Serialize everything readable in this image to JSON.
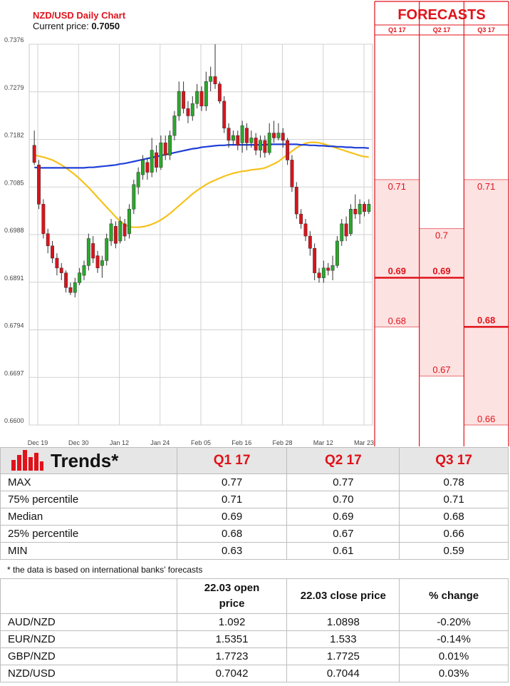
{
  "chart_data": {
    "type": "candlestick",
    "title": "NZD/USD Daily Chart",
    "current_price_label": "Current price:",
    "current_price": "0.7050",
    "y_ticks": [
      0.66,
      0.6697,
      0.6794,
      0.6891,
      0.6988,
      0.7085,
      0.7182,
      0.7279,
      0.7376
    ],
    "y_tick_labels": [
      "0.6600",
      "0.6697",
      "0.6794",
      "0.6891",
      "0.6988",
      "0.7085",
      "0.7182",
      "0.7279",
      "0.7376"
    ],
    "ylim": [
      0.66,
      0.7376
    ],
    "x_labels": [
      "Dec 19",
      "Dec 30",
      "Jan 12",
      "Jan 24",
      "Feb 05",
      "Feb 16",
      "Feb 28",
      "Mar 12",
      "Mar 23"
    ],
    "grid": true,
    "candles": [
      [
        0.717,
        0.7135,
        0.72,
        0.713
      ],
      [
        0.713,
        0.705,
        0.714,
        0.704
      ],
      [
        0.705,
        0.699,
        0.706,
        0.698
      ],
      [
        0.699,
        0.6965,
        0.7,
        0.695
      ],
      [
        0.6965,
        0.694,
        0.6975,
        0.693
      ],
      [
        0.694,
        0.692,
        0.695,
        0.6905
      ],
      [
        0.692,
        0.691,
        0.693,
        0.6895
      ],
      [
        0.691,
        0.688,
        0.6915,
        0.687
      ],
      [
        0.688,
        0.687,
        0.689,
        0.6865
      ],
      [
        0.687,
        0.689,
        0.69,
        0.686
      ],
      [
        0.689,
        0.691,
        0.692,
        0.6885
      ],
      [
        0.6905,
        0.6925,
        0.6935,
        0.6895
      ],
      [
        0.6925,
        0.698,
        0.699,
        0.6915
      ],
      [
        0.697,
        0.694,
        0.6985,
        0.693
      ],
      [
        0.6945,
        0.692,
        0.6955,
        0.691
      ],
      [
        0.6925,
        0.6935,
        0.6945,
        0.69
      ],
      [
        0.6935,
        0.698,
        0.699,
        0.6925
      ],
      [
        0.6975,
        0.701,
        0.702,
        0.6965
      ],
      [
        0.7005,
        0.697,
        0.7015,
        0.696
      ],
      [
        0.6975,
        0.7015,
        0.7025,
        0.697
      ],
      [
        0.701,
        0.6985,
        0.702,
        0.6975
      ],
      [
        0.699,
        0.704,
        0.705,
        0.698
      ],
      [
        0.704,
        0.709,
        0.71,
        0.703
      ],
      [
        0.7085,
        0.7115,
        0.7125,
        0.707
      ],
      [
        0.711,
        0.714,
        0.715,
        0.71
      ],
      [
        0.7135,
        0.7115,
        0.7145,
        0.71
      ],
      [
        0.7115,
        0.716,
        0.7185,
        0.7105
      ],
      [
        0.7155,
        0.7125,
        0.717,
        0.7115
      ],
      [
        0.7125,
        0.7175,
        0.719,
        0.712
      ],
      [
        0.7175,
        0.715,
        0.719,
        0.714
      ],
      [
        0.715,
        0.719,
        0.72,
        0.714
      ],
      [
        0.719,
        0.723,
        0.724,
        0.718
      ],
      [
        0.723,
        0.728,
        0.73,
        0.722
      ],
      [
        0.728,
        0.7245,
        0.73,
        0.7235
      ],
      [
        0.7245,
        0.723,
        0.726,
        0.7215
      ],
      [
        0.723,
        0.7255,
        0.727,
        0.722
      ],
      [
        0.7255,
        0.728,
        0.7295,
        0.7245
      ],
      [
        0.728,
        0.725,
        0.729,
        0.724
      ],
      [
        0.725,
        0.73,
        0.732,
        0.724
      ],
      [
        0.73,
        0.731,
        0.733,
        0.728
      ],
      [
        0.731,
        0.7295,
        0.7376,
        0.7285
      ],
      [
        0.7295,
        0.726,
        0.73,
        0.7255
      ],
      [
        0.726,
        0.7205,
        0.727,
        0.7195
      ],
      [
        0.7205,
        0.718,
        0.7215,
        0.7165
      ],
      [
        0.718,
        0.719,
        0.72,
        0.717
      ],
      [
        0.719,
        0.717,
        0.72,
        0.716
      ],
      [
        0.7175,
        0.721,
        0.722,
        0.7155
      ],
      [
        0.7205,
        0.7175,
        0.7215,
        0.716
      ],
      [
        0.7175,
        0.7185,
        0.72,
        0.7165
      ],
      [
        0.7185,
        0.716,
        0.7195,
        0.715
      ],
      [
        0.716,
        0.718,
        0.719,
        0.7145
      ],
      [
        0.718,
        0.7155,
        0.719,
        0.7145
      ],
      [
        0.7155,
        0.7195,
        0.7215,
        0.715
      ],
      [
        0.7195,
        0.7185,
        0.722,
        0.7175
      ],
      [
        0.7185,
        0.7195,
        0.7215,
        0.718
      ],
      [
        0.7195,
        0.718,
        0.7205,
        0.7165
      ],
      [
        0.718,
        0.714,
        0.7185,
        0.713
      ],
      [
        0.714,
        0.7085,
        0.715,
        0.7075
      ],
      [
        0.7085,
        0.703,
        0.7095,
        0.702
      ],
      [
        0.703,
        0.701,
        0.704,
        0.7
      ],
      [
        0.701,
        0.6985,
        0.702,
        0.6975
      ],
      [
        0.6985,
        0.696,
        0.6995,
        0.6945
      ],
      [
        0.696,
        0.691,
        0.697,
        0.6895
      ],
      [
        0.691,
        0.69,
        0.692,
        0.689
      ],
      [
        0.69,
        0.692,
        0.6935,
        0.689
      ],
      [
        0.692,
        0.6915,
        0.693,
        0.6905
      ],
      [
        0.6915,
        0.6925,
        0.6945,
        0.6895
      ],
      [
        0.6925,
        0.6975,
        0.6985,
        0.692
      ],
      [
        0.6975,
        0.701,
        0.702,
        0.6965
      ],
      [
        0.701,
        0.6985,
        0.7025,
        0.6975
      ],
      [
        0.699,
        0.704,
        0.705,
        0.6985
      ],
      [
        0.704,
        0.703,
        0.707,
        0.702
      ],
      [
        0.703,
        0.705,
        0.706,
        0.701
      ],
      [
        0.705,
        0.7035,
        0.7055,
        0.7025
      ],
      [
        0.7035,
        0.705,
        0.706,
        0.703
      ]
    ],
    "ma_blue": [
      0.7125,
      0.7124,
      0.7124,
      0.7124,
      0.7124,
      0.7124,
      0.7124,
      0.7124,
      0.7124,
      0.7124,
      0.7124,
      0.7124,
      0.7125,
      0.7125,
      0.7126,
      0.7127,
      0.7128,
      0.7129,
      0.713,
      0.7132,
      0.7133,
      0.7135,
      0.7137,
      0.7139,
      0.7141,
      0.7143,
      0.7145,
      0.7147,
      0.7149,
      0.7151,
      0.7153,
      0.7155,
      0.7157,
      0.7159,
      0.7161,
      0.7163,
      0.7164,
      0.7166,
      0.7167,
      0.7168,
      0.7169,
      0.717,
      0.717,
      0.7171,
      0.7171,
      0.7171,
      0.7171,
      0.7171,
      0.7171,
      0.7171,
      0.7171,
      0.7171,
      0.7172,
      0.7172,
      0.7172,
      0.7172,
      0.7172,
      0.7172,
      0.7172,
      0.7171,
      0.7171,
      0.717,
      0.717,
      0.7169,
      0.7169,
      0.7168,
      0.7168,
      0.7167,
      0.7167,
      0.7166,
      0.7166,
      0.7165,
      0.7165,
      0.7165,
      0.7164
    ],
    "ma_yellow": [
      0.715,
      0.7148,
      0.7146,
      0.7143,
      0.714,
      0.7135,
      0.713,
      0.7124,
      0.7117,
      0.711,
      0.7102,
      0.7093,
      0.7084,
      0.7074,
      0.7064,
      0.7054,
      0.7044,
      0.7034,
      0.7024,
      0.7015,
      0.7008,
      0.7004,
      0.7003,
      0.7003,
      0.7004,
      0.7006,
      0.7009,
      0.7013,
      0.7018,
      0.7024,
      0.7031,
      0.7039,
      0.7047,
      0.7055,
      0.7063,
      0.7071,
      0.7078,
      0.7084,
      0.709,
      0.7095,
      0.7099,
      0.7103,
      0.7107,
      0.711,
      0.7113,
      0.7115,
      0.7117,
      0.7118,
      0.712,
      0.7121,
      0.7122,
      0.7124,
      0.7128,
      0.7132,
      0.7137,
      0.7144,
      0.7151,
      0.7158,
      0.7165,
      0.717,
      0.7174,
      0.7176,
      0.7176,
      0.7175,
      0.7173,
      0.717,
      0.7167,
      0.7164,
      0.7161,
      0.7158,
      0.7155,
      0.7152,
      0.7149,
      0.7147,
      0.7146
    ]
  },
  "forecasts": {
    "title": "FORECASTS",
    "columns": [
      "Q1 17",
      "Q2 17",
      "Q3 17"
    ],
    "ranges": [
      [
        0.68,
        0.71
      ],
      [
        0.67,
        0.7
      ],
      [
        0.66,
        0.71
      ]
    ],
    "medians": [
      0.69,
      0.69,
      0.68
    ],
    "labels": [
      {
        "top": "0.71",
        "median": "0.69",
        "bottom": "0.68"
      },
      {
        "top": "0.7",
        "median": "0.69",
        "bottom": "0.67"
      },
      {
        "top": "0.71",
        "median": "0.68",
        "bottom": "0.66"
      }
    ],
    "colors": {
      "band": "#fde2e2",
      "border": "#e0121a",
      "text": "#e0121a"
    }
  },
  "trends": {
    "title": "Trends*",
    "columns": [
      "Q1 17",
      "Q2 17",
      "Q3 17"
    ],
    "rows": [
      {
        "label": "MAX",
        "values": [
          "0.77",
          "0.77",
          "0.78"
        ]
      },
      {
        "label": "75% percentile",
        "values": [
          "0.71",
          "0.70",
          "0.71"
        ]
      },
      {
        "label": "Median",
        "values": [
          "0.69",
          "0.69",
          "0.68"
        ]
      },
      {
        "label": "25% percentile",
        "values": [
          "0.68",
          "0.67",
          "0.66"
        ]
      },
      {
        "label": "MIN",
        "values": [
          "0.63",
          "0.61",
          "0.59"
        ]
      }
    ],
    "footnote": "* the data is based on international banks’ forecasts"
  },
  "fx": {
    "headers": {
      "open": "22.03 open price",
      "close": "22.03 close price",
      "change": "% change"
    },
    "rows": [
      {
        "pair": "AUD/NZD",
        "open": "1.092",
        "close": "1.0898",
        "change": "-0.20%",
        "dir": "neg"
      },
      {
        "pair": "EUR/NZD",
        "open": "1.5351",
        "close": "1.533",
        "change": "-0.14%",
        "dir": "neg"
      },
      {
        "pair": "GBP/NZD",
        "open": "1.7723",
        "close": "1.7725",
        "change": "0.01%",
        "dir": "pos"
      },
      {
        "pair": "NZD/USD",
        "open": "0.7042",
        "close": "0.7044",
        "change": "0.03%",
        "dir": "pos"
      }
    ]
  },
  "colors": {
    "up": "#2aa82a",
    "down": "#d8141c",
    "ma_blue": "#1f3fd6",
    "ma_yellow": "#f5c21b",
    "accent": "#e0121a"
  }
}
